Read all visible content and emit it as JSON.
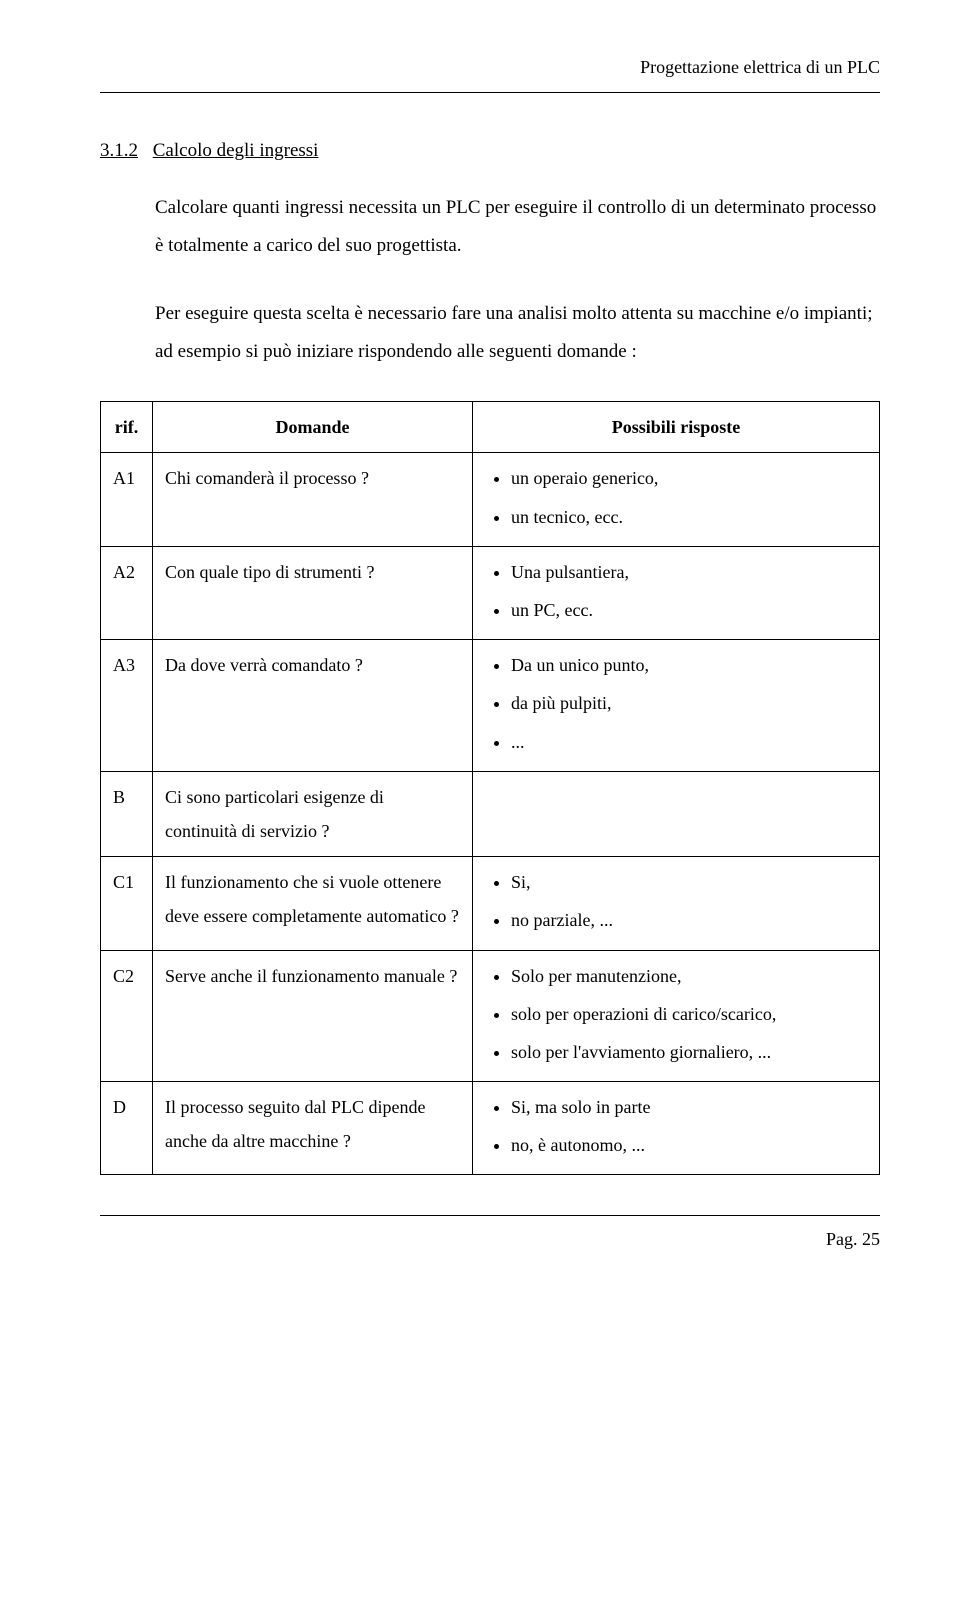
{
  "header": {
    "running_title": "Progettazione elettrica di un PLC"
  },
  "section": {
    "number": "3.1.2",
    "title": "Calcolo degli ingressi",
    "paragraph1": "Calcolare quanti ingressi necessita un PLC per eseguire il controllo di un determinato processo è totalmente a carico del suo progettista.",
    "paragraph2": "Per eseguire questa scelta è necessario fare una analisi molto attenta su macchine e/o impianti; ad esempio si può iniziare rispondendo alle seguenti domande :"
  },
  "table": {
    "header": {
      "col1": "rif.",
      "col2": "Domande",
      "col3": "Possibili risposte"
    },
    "rows": [
      {
        "ref": "A1",
        "question": "Chi comanderà il processo ?",
        "answers": [
          "un operaio generico,",
          "un tecnico, ecc."
        ]
      },
      {
        "ref": "A2",
        "question": "Con quale tipo di strumenti ?",
        "answers": [
          "Una pulsantiera,",
          "un PC, ecc."
        ]
      },
      {
        "ref": "A3",
        "question": "Da dove verrà comandato ?",
        "answers": [
          "Da un unico punto,",
          "da più pulpiti,",
          "..."
        ]
      },
      {
        "ref": "B",
        "question": "Ci sono particolari esigenze di continuità di servizio ?",
        "answers": []
      },
      {
        "ref": "C1",
        "question": "Il funzionamento che si vuole ottenere deve essere completamente automatico ?",
        "answers": [
          "Si,",
          "no parziale, ..."
        ]
      },
      {
        "ref": "C2",
        "question": "Serve anche il funzionamento manuale ?",
        "answers": [
          "Solo per manutenzione,",
          "solo per operazioni di carico/scarico,",
          "solo per l'avviamento giornaliero, ..."
        ]
      },
      {
        "ref": "D",
        "question": "Il processo seguito dal PLC dipende anche da altre macchine ?",
        "answers": [
          "Si, ma solo in parte",
          "no, è autonomo, ..."
        ]
      }
    ]
  },
  "footer": {
    "page": "Pag. 25"
  }
}
